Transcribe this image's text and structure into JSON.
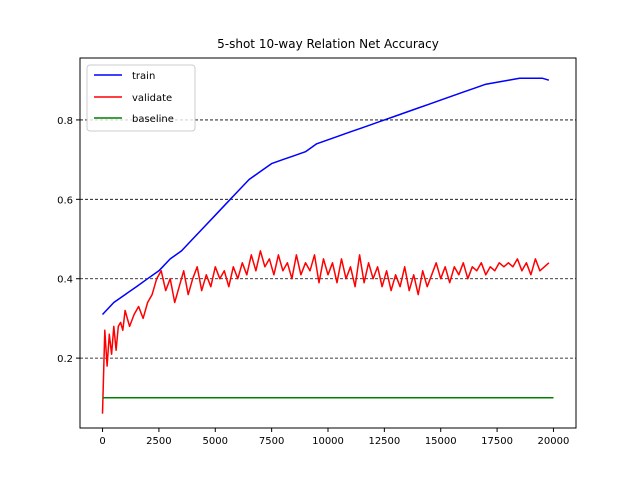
{
  "chart_data": {
    "type": "line",
    "title": "5-shot 10-way Relation Net Accuracy",
    "xlabel": "",
    "ylabel": "",
    "xlim": [
      -1000,
      21000
    ],
    "ylim": [
      0.024,
      0.956
    ],
    "xticks": [
      0,
      2500,
      5000,
      7500,
      10000,
      12500,
      15000,
      17500,
      20000
    ],
    "yticks": [
      0.2,
      0.4,
      0.6,
      0.8
    ],
    "grid": "horizontal dashed at y ticks",
    "legend": "top-left",
    "series": [
      {
        "name": "train",
        "color": "#0000ff",
        "x": [
          0,
          500,
          1000,
          1500,
          2000,
          2500,
          3000,
          3500,
          4000,
          4500,
          5000,
          5500,
          6000,
          6500,
          7000,
          7500,
          8000,
          8500,
          9000,
          9500,
          10000,
          10500,
          11000,
          11500,
          12000,
          12500,
          13000,
          13500,
          14000,
          14500,
          15000,
          15500,
          16000,
          16500,
          17000,
          17500,
          18000,
          18500,
          19000,
          19500,
          19800
        ],
        "y": [
          0.31,
          0.34,
          0.36,
          0.38,
          0.4,
          0.42,
          0.45,
          0.47,
          0.5,
          0.53,
          0.56,
          0.59,
          0.62,
          0.65,
          0.67,
          0.69,
          0.7,
          0.71,
          0.72,
          0.74,
          0.75,
          0.76,
          0.77,
          0.78,
          0.79,
          0.8,
          0.81,
          0.82,
          0.83,
          0.84,
          0.85,
          0.86,
          0.87,
          0.88,
          0.89,
          0.895,
          0.9,
          0.905,
          0.905,
          0.905,
          0.9
        ]
      },
      {
        "name": "validate",
        "color": "#ff0000",
        "x": [
          0,
          100,
          200,
          300,
          400,
          500,
          600,
          700,
          800,
          900,
          1000,
          1200,
          1400,
          1600,
          1800,
          2000,
          2200,
          2400,
          2600,
          2800,
          3000,
          3200,
          3400,
          3600,
          3800,
          4000,
          4200,
          4400,
          4600,
          4800,
          5000,
          5200,
          5400,
          5600,
          5800,
          6000,
          6200,
          6400,
          6600,
          6800,
          7000,
          7200,
          7400,
          7600,
          7800,
          8000,
          8200,
          8400,
          8600,
          8800,
          9000,
          9200,
          9400,
          9600,
          9800,
          10000,
          10200,
          10400,
          10600,
          10800,
          11000,
          11200,
          11400,
          11600,
          11800,
          12000,
          12200,
          12400,
          12600,
          12800,
          13000,
          13200,
          13400,
          13600,
          13800,
          14000,
          14200,
          14400,
          14600,
          14800,
          15000,
          15200,
          15400,
          15600,
          15800,
          16000,
          16200,
          16400,
          16600,
          16800,
          17000,
          17200,
          17400,
          17600,
          17800,
          18000,
          18200,
          18400,
          18600,
          18800,
          19000,
          19200,
          19400,
          19600,
          19800
        ],
        "y": [
          0.06,
          0.27,
          0.18,
          0.26,
          0.21,
          0.28,
          0.22,
          0.28,
          0.29,
          0.27,
          0.32,
          0.28,
          0.31,
          0.33,
          0.3,
          0.34,
          0.36,
          0.4,
          0.42,
          0.37,
          0.4,
          0.34,
          0.38,
          0.42,
          0.36,
          0.4,
          0.43,
          0.37,
          0.41,
          0.38,
          0.43,
          0.4,
          0.42,
          0.38,
          0.43,
          0.4,
          0.44,
          0.41,
          0.46,
          0.42,
          0.47,
          0.43,
          0.45,
          0.41,
          0.46,
          0.42,
          0.44,
          0.4,
          0.46,
          0.41,
          0.44,
          0.42,
          0.46,
          0.39,
          0.45,
          0.41,
          0.44,
          0.39,
          0.45,
          0.4,
          0.43,
          0.38,
          0.46,
          0.39,
          0.44,
          0.4,
          0.43,
          0.38,
          0.42,
          0.37,
          0.41,
          0.38,
          0.43,
          0.37,
          0.41,
          0.36,
          0.42,
          0.38,
          0.41,
          0.44,
          0.4,
          0.43,
          0.39,
          0.43,
          0.41,
          0.44,
          0.4,
          0.43,
          0.42,
          0.44,
          0.41,
          0.43,
          0.42,
          0.44,
          0.43,
          0.44,
          0.43,
          0.45,
          0.42,
          0.44,
          0.41,
          0.45,
          0.42,
          0.43,
          0.44
        ]
      },
      {
        "name": "baseline",
        "color": "#008000",
        "x": [
          0,
          20000
        ],
        "y": [
          0.1,
          0.1
        ]
      }
    ]
  }
}
